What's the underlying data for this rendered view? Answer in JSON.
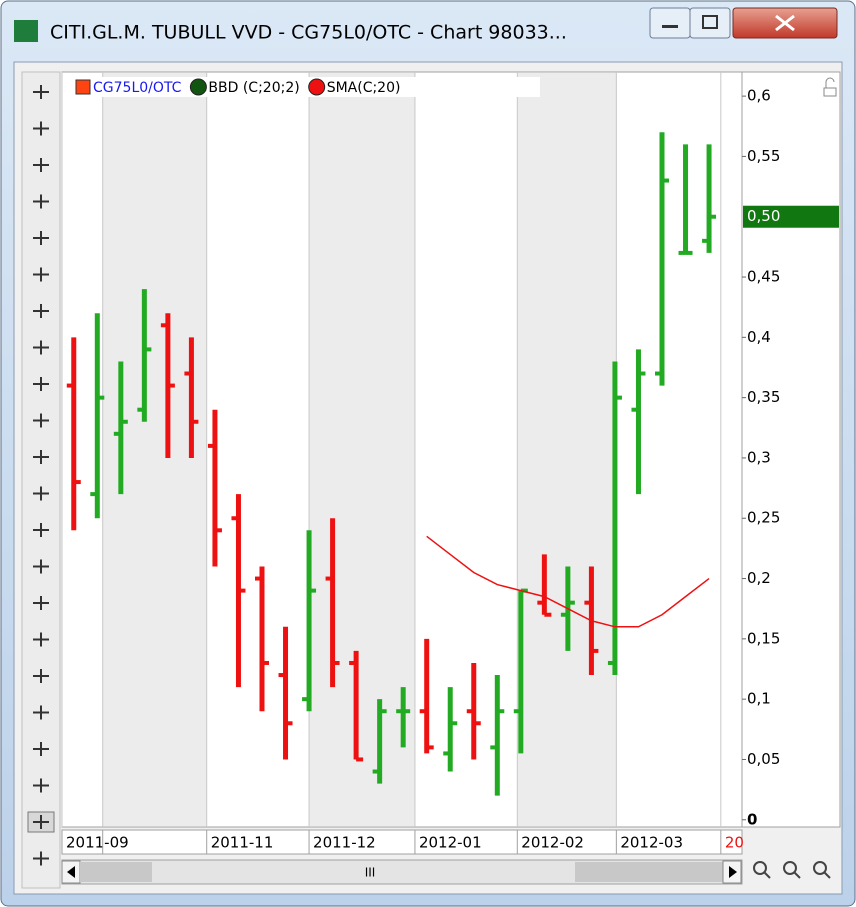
{
  "window": {
    "title": "CITI.GL.M. TUBULL VVD - CG75L0/OTC - Chart 98033...",
    "scroll_label": "III"
  },
  "chart_data": {
    "type": "ohlc",
    "series": [
      {
        "name": "CG75L0/OTC",
        "color": "#ff4411",
        "up_color": "#22aa22",
        "down_color": "#ee1111",
        "open": [
          0.36,
          0.27,
          0.32,
          0.34,
          0.41,
          0.37,
          0.31,
          0.25,
          0.2,
          0.12,
          0.1,
          0.2,
          0.13,
          0.04,
          0.09,
          0.09,
          0.055,
          0.09,
          0.06,
          0.09,
          0.18,
          0.17,
          0.18,
          0.13,
          0.34,
          0.37,
          0.47,
          0.48
        ],
        "high": [
          0.4,
          0.42,
          0.38,
          0.44,
          0.42,
          0.4,
          0.34,
          0.27,
          0.21,
          0.16,
          0.24,
          0.25,
          0.14,
          0.1,
          0.11,
          0.15,
          0.11,
          0.13,
          0.12,
          0.19,
          0.22,
          0.21,
          0.21,
          0.38,
          0.39,
          0.57,
          0.56,
          0.56
        ],
        "low": [
          0.24,
          0.25,
          0.27,
          0.33,
          0.3,
          0.3,
          0.21,
          0.11,
          0.09,
          0.05,
          0.09,
          0.11,
          0.05,
          0.03,
          0.06,
          0.055,
          0.04,
          0.05,
          0.02,
          0.055,
          0.17,
          0.14,
          0.12,
          0.12,
          0.27,
          0.36,
          0.47,
          0.47
        ],
        "close": [
          0.28,
          0.35,
          0.33,
          0.39,
          0.36,
          0.33,
          0.24,
          0.19,
          0.13,
          0.08,
          0.19,
          0.13,
          0.05,
          0.09,
          0.09,
          0.06,
          0.08,
          0.08,
          0.09,
          0.19,
          0.17,
          0.18,
          0.14,
          0.35,
          0.37,
          0.53,
          0.47,
          0.5
        ]
      },
      {
        "name": "BBD (C;20;2)",
        "color": "#115511"
      },
      {
        "name": "SMA(C;20)",
        "color": "#ee1111",
        "type": "line",
        "values": [
          null,
          null,
          null,
          null,
          null,
          null,
          null,
          null,
          null,
          null,
          null,
          null,
          null,
          null,
          null,
          0.235,
          0.22,
          0.205,
          0.195,
          0.19,
          0.185,
          0.175,
          0.165,
          0.16,
          0.16,
          0.17,
          0.185,
          0.2
        ]
      }
    ],
    "xlim": [
      -0.5,
      28.4
    ],
    "xticks": [
      {
        "value": -0.5,
        "label": "2011-09"
      },
      {
        "value": 1.23,
        "label": null
      },
      {
        "value": 5.65,
        "label": "2011-11"
      },
      {
        "value": 10.0,
        "label": "2011-12"
      },
      {
        "value": 14.5,
        "label": "2012-01"
      },
      {
        "value": 18.85,
        "label": "2012-02"
      },
      {
        "value": 23.06,
        "label": "2012-03"
      },
      {
        "value": 27.5,
        "label": "20"
      }
    ],
    "ylim": [
      -0.006,
      0.62
    ],
    "yticks": [
      0,
      {
        "value": 0.05,
        "label": "0,05"
      },
      {
        "value": 0.1,
        "label": "0,1"
      },
      {
        "value": 0.15,
        "label": "0,15"
      },
      {
        "value": 0.2,
        "label": "0,2"
      },
      {
        "value": 0.25,
        "label": "0,25"
      },
      {
        "value": 0.3,
        "label": "0,3"
      },
      {
        "value": 0.35,
        "label": "0,35"
      },
      {
        "value": 0.4,
        "label": "0,4"
      },
      {
        "value": 0.45,
        "label": "0,45"
      },
      {
        "value": 0.55,
        "label": "0,55"
      },
      {
        "value": 0.6,
        "label": "0,6"
      }
    ],
    "current_value": {
      "value": 0.5,
      "label": "0,50",
      "color": "#117711"
    },
    "grid": "x",
    "shade_alternate": true,
    "last_xtick_color": "#ee1111"
  }
}
